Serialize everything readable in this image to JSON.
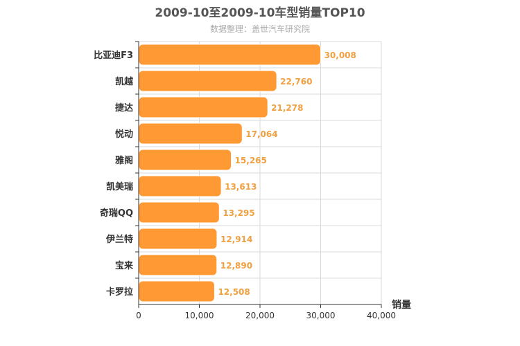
{
  "chart_data": {
    "type": "bar",
    "orientation": "horizontal",
    "title": "2009-10至2009-10车型销量TOP10",
    "subtitle": "数据整理：盖世汽车研究院",
    "categories": [
      "比亚迪F3",
      "凯越",
      "捷达",
      "悦动",
      "雅阁",
      "凯美瑞",
      "奇瑞QQ",
      "伊兰特",
      "宝来",
      "卡罗拉"
    ],
    "values": [
      30008,
      22760,
      21278,
      17064,
      15265,
      13613,
      13295,
      12914,
      12890,
      12508
    ],
    "value_labels": [
      "30,008",
      "22,760",
      "21,278",
      "17,064",
      "15,265",
      "13,613",
      "13,295",
      "12,914",
      "12,890",
      "12,508"
    ],
    "xlabel": "销量",
    "ylabel": "",
    "xlim": [
      0,
      40000
    ],
    "x_ticks": [
      0,
      10000,
      20000,
      30000,
      40000
    ],
    "x_tick_labels": [
      "0",
      "10,000",
      "20,000",
      "30,000",
      "40,000"
    ],
    "grid": true,
    "colors": {
      "bar": "#ff9933",
      "bar_stroke": "#ffffff",
      "value_label": "#f0a040",
      "grid": "#d8d8d8",
      "axis": "#333333"
    }
  }
}
